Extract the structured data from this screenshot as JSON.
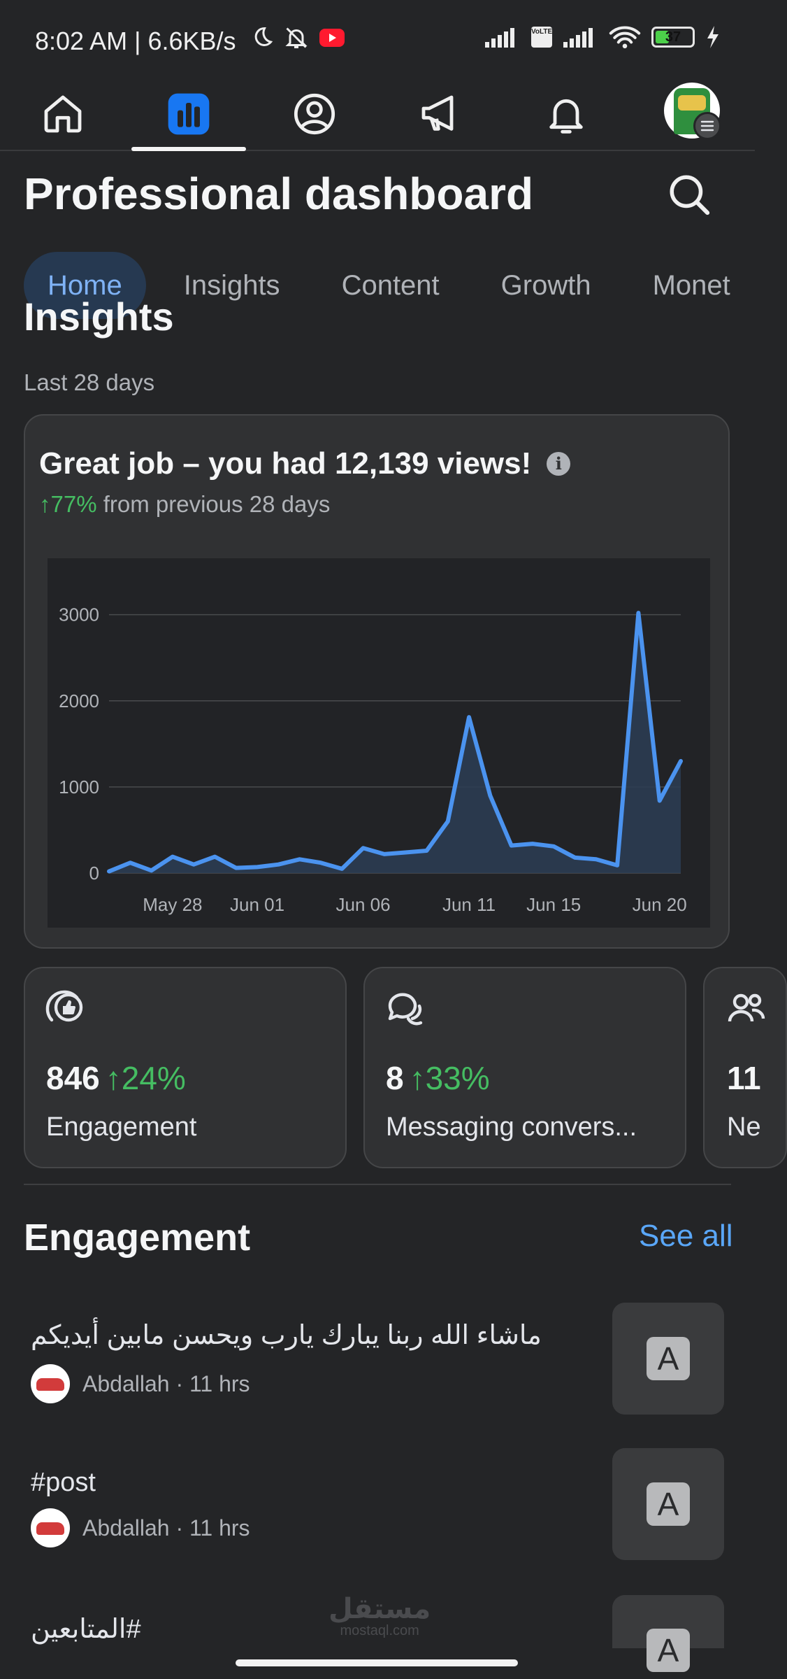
{
  "status_bar": {
    "time": "8:02 AM | 6.6KB/s",
    "battery": "37",
    "battery_level": 0.37,
    "network_badge": "VoLTE"
  },
  "top_nav": {
    "items": [
      {
        "icon": "home-icon"
      },
      {
        "icon": "dashboard-bar-chart-icon",
        "active": true
      },
      {
        "icon": "profile-icon"
      },
      {
        "icon": "megaphone-icon"
      },
      {
        "icon": "bell-icon"
      },
      {
        "icon": "avatar-menu"
      }
    ]
  },
  "header": {
    "title": "Professional dashboard",
    "search_icon": "search-icon"
  },
  "tabs": [
    {
      "label": "Home",
      "active": true
    },
    {
      "label": "Insights"
    },
    {
      "label": "Content"
    },
    {
      "label": "Growth"
    },
    {
      "label": "Monet"
    }
  ],
  "section": {
    "title_cut": "Insights",
    "period": "Last 28 days"
  },
  "views_card": {
    "title": "Great job – you had 12,139 views!",
    "change": "↑77%",
    "change_suffix": "from previous 28 days"
  },
  "chart_data": {
    "type": "area",
    "title": "",
    "xlabel": "",
    "ylabel": "",
    "ylim": [
      0,
      3200
    ],
    "yticks": [
      0,
      1000,
      2000,
      3000
    ],
    "xtick_labels": [
      "May 28",
      "Jun 01",
      "Jun 06",
      "Jun 11",
      "Jun 15",
      "Jun 20"
    ],
    "xtick_index": [
      3,
      7,
      12,
      17,
      21,
      26
    ],
    "grid": true,
    "colors": {
      "line": "#4b93ef",
      "fill": "#2c3d55"
    },
    "x": [
      "May 25",
      "May 26",
      "May 27",
      "May 28",
      "May 29",
      "May 30",
      "May 31",
      "Jun 01",
      "Jun 02",
      "Jun 03",
      "Jun 04",
      "Jun 05",
      "Jun 06",
      "Jun 07",
      "Jun 08",
      "Jun 09",
      "Jun 10",
      "Jun 11",
      "Jun 12",
      "Jun 13",
      "Jun 14",
      "Jun 15",
      "Jun 16",
      "Jun 17",
      "Jun 18",
      "Jun 19",
      "Jun 20",
      "Jun 21"
    ],
    "values": [
      20,
      120,
      30,
      190,
      100,
      190,
      60,
      70,
      100,
      160,
      120,
      50,
      290,
      220,
      240,
      260,
      600,
      1810,
      900,
      320,
      340,
      310,
      180,
      160,
      90,
      3020,
      840,
      1300
    ]
  },
  "metrics": [
    {
      "icon": "thumbs-up-icon",
      "value": "846",
      "change": "24%",
      "label": "Engagement"
    },
    {
      "icon": "messenger-icon",
      "value": "8",
      "change": "33%",
      "label": "Messaging convers..."
    },
    {
      "icon": "people-icon",
      "value": "11",
      "change": "",
      "label": "Ne"
    }
  ],
  "engagement": {
    "title": "Engagement",
    "see_all": "See all",
    "items": [
      {
        "text": "ماشاء الله ربنا يبارك يارب ويحسن مابين أيديكم",
        "author": "Abdallah · 11 hrs",
        "thumb": "A"
      },
      {
        "text": "#post",
        "author": "Abdallah · 11 hrs",
        "thumb": "A"
      },
      {
        "text": "#المتابعين",
        "author": "",
        "thumb": "A"
      }
    ]
  },
  "watermark": {
    "line1": "مستقل",
    "line2": "mostaql.com"
  }
}
